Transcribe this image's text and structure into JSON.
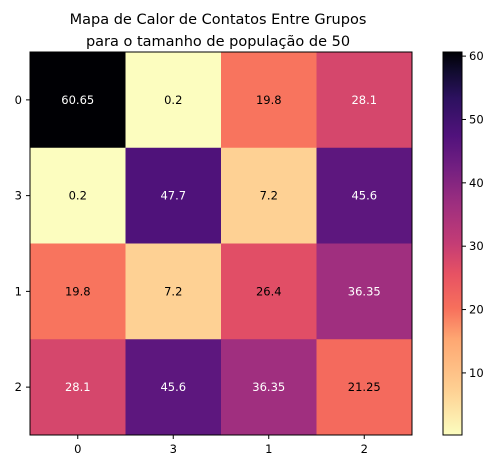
{
  "chart_data": {
    "type": "heatmap",
    "title_lines": [
      "Mapa de Calor de Contatos Entre Grupos",
      "para o tamanho de população de 50"
    ],
    "x_categories": [
      "0",
      "3",
      "1",
      "2"
    ],
    "y_categories": [
      "0",
      "3",
      "1",
      "2"
    ],
    "values": [
      [
        60.65,
        0.2,
        19.8,
        28.1
      ],
      [
        0.2,
        47.7,
        7.2,
        45.6
      ],
      [
        19.8,
        7.2,
        26.4,
        36.35
      ],
      [
        28.1,
        45.6,
        36.35,
        21.25
      ]
    ],
    "value_labels": [
      [
        "60.65",
        "0.2",
        "19.8",
        "28.1"
      ],
      [
        "0.2",
        "47.7",
        "7.2",
        "45.6"
      ],
      [
        "19.8",
        "7.2",
        "26.4",
        "36.35"
      ],
      [
        "28.1",
        "45.6",
        "36.35",
        "21.25"
      ]
    ],
    "colormap": "magma_r",
    "colorbar": {
      "range": [
        0.2,
        60.65
      ],
      "ticks": [
        10,
        20,
        30,
        40,
        50,
        60
      ],
      "tick_labels": [
        "10",
        "20",
        "30",
        "40",
        "50",
        "60"
      ],
      "placement": "right"
    }
  }
}
